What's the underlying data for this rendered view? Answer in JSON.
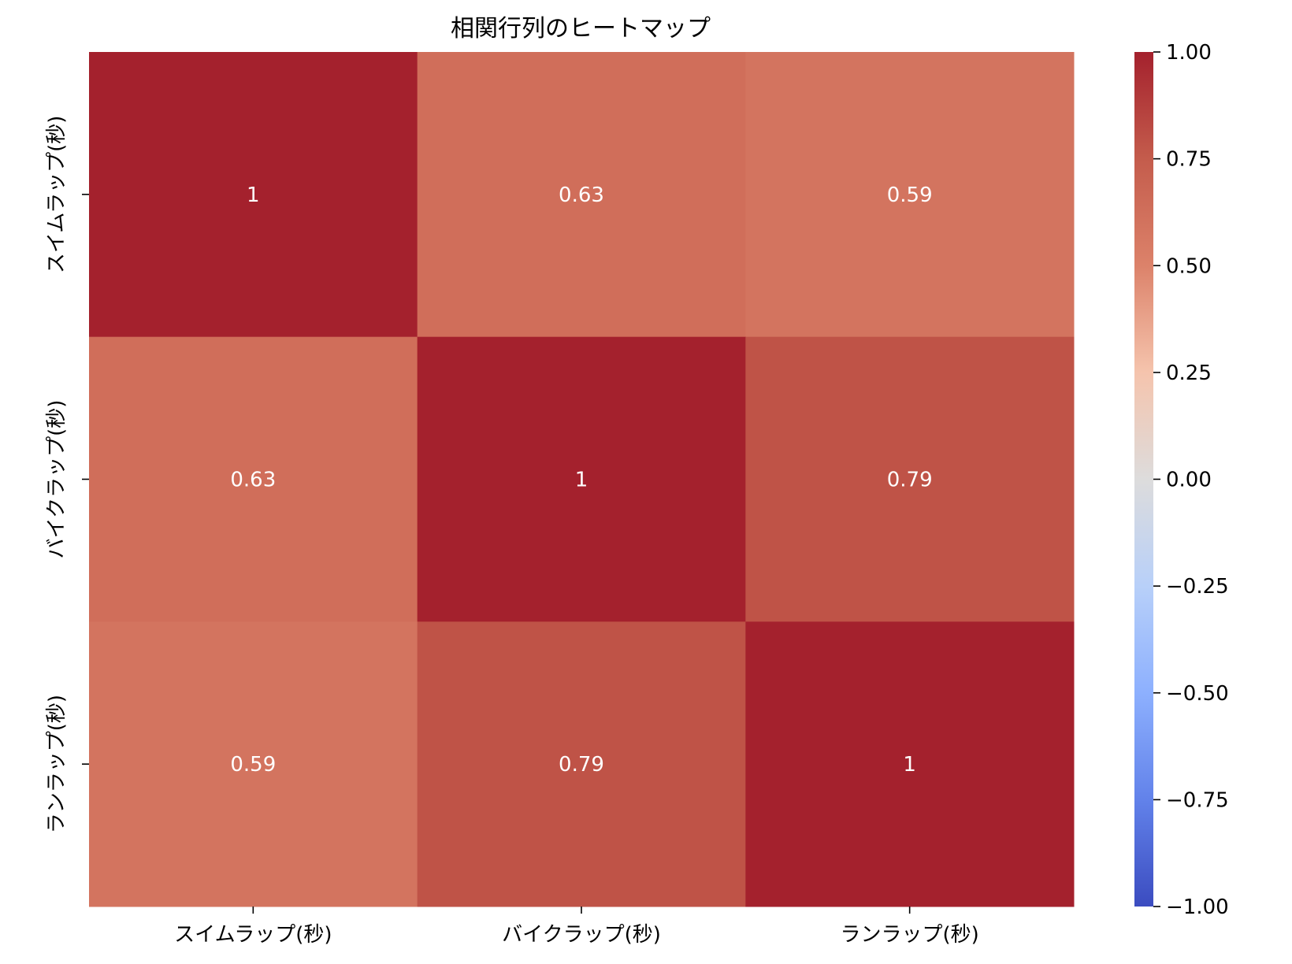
{
  "chart_data": {
    "type": "heatmap",
    "title": "相関行列のヒートマップ",
    "xlabel": "",
    "ylabel": "",
    "x_categories": [
      "スイムラップ(秒)",
      "バイクラップ(秒)",
      "ランラップ(秒)"
    ],
    "y_categories": [
      "スイムラップ(秒)",
      "バイクラップ(秒)",
      "ランラップ(秒)"
    ],
    "values": [
      [
        1,
        0.63,
        0.59
      ],
      [
        0.63,
        1,
        0.79
      ],
      [
        0.59,
        0.79,
        1
      ]
    ],
    "annotations": [
      [
        "1",
        "0.63",
        "0.59"
      ],
      [
        "0.63",
        "1",
        "0.79"
      ],
      [
        "0.59",
        "0.79",
        "1"
      ]
    ],
    "colorbar": {
      "vmin": -1.0,
      "vmax": 1.0,
      "ticks": [
        1.0,
        0.75,
        0.5,
        0.25,
        0.0,
        -0.25,
        -0.5,
        -0.75,
        -1.0
      ],
      "tick_labels": [
        "1.00",
        "0.75",
        "0.50",
        "0.25",
        "0.00",
        "−0.25",
        "−0.50",
        "−0.75",
        "−1.00"
      ],
      "colormap": "coolwarm",
      "colors": {
        "low": "#3b4cc0",
        "mid": "#dddcdc",
        "high": "#b40426"
      }
    },
    "grid": false
  }
}
